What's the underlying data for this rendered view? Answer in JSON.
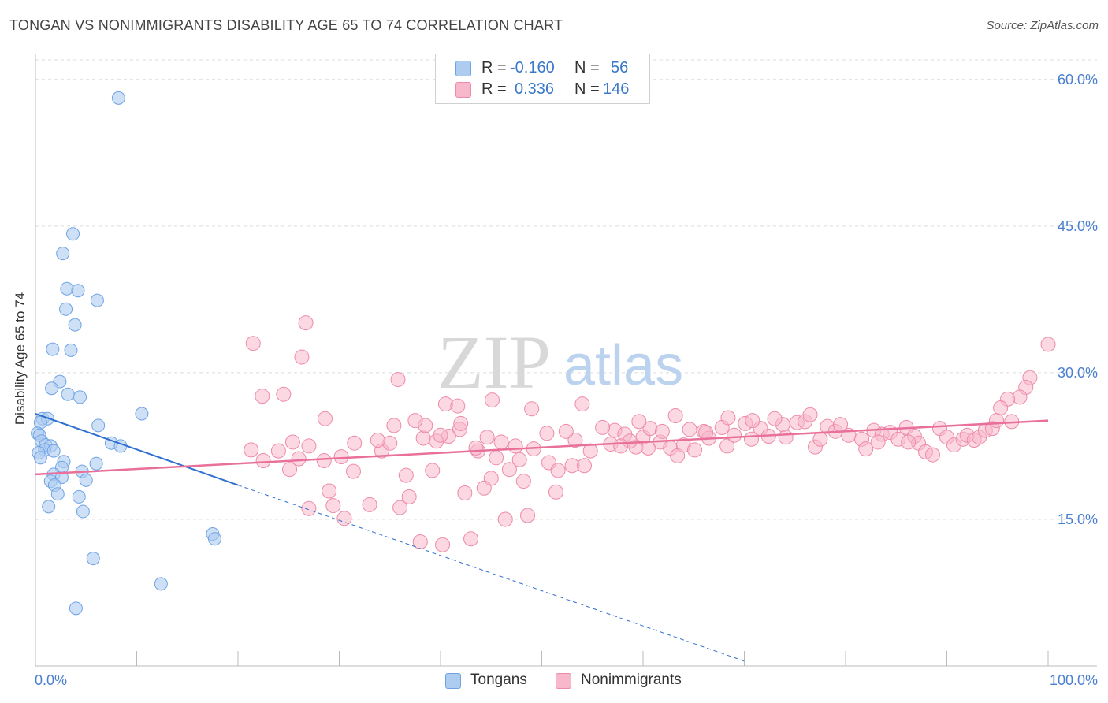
{
  "title": "TONGAN VS NONIMMIGRANTS DISABILITY AGE 65 TO 74 CORRELATION CHART",
  "source": "Source: ZipAtlas.com",
  "watermark": {
    "zip": "ZIP",
    "atlas": "atlas"
  },
  "legend_stats": [
    {
      "r_label": "R =",
      "r_value": "-0.160",
      "n_label": "N =",
      "n_value": "56",
      "color": "#aecbf0"
    },
    {
      "r_label": "R =",
      "r_value": "0.336",
      "n_label": "N =",
      "n_value": "146",
      "color": "#f7b8cb"
    }
  ],
  "legend_series": [
    {
      "name": "Tongans",
      "color": "#aecbf0"
    },
    {
      "name": "Nonimmigrants",
      "color": "#f7b8cb"
    }
  ],
  "chart_data": {
    "type": "scatter",
    "title": "TONGAN VS NONIMMIGRANTS DISABILITY AGE 65 TO 74 CORRELATION CHART",
    "xlabel": "",
    "ylabel": "Disability Age 65 to 74",
    "xlim": [
      0,
      100
    ],
    "ylim": [
      0,
      62
    ],
    "x_tick_labels": [
      "0.0%",
      "100.0%"
    ],
    "y_ticks": [
      15,
      30,
      45,
      60
    ],
    "y_tick_labels": [
      "15.0%",
      "30.0%",
      "45.0%",
      "60.0%"
    ],
    "grid": true,
    "legend_placement": "bottom",
    "colors": {
      "tongans": "#6fa3e6",
      "tongans_fill": "#aecbf0",
      "tongans_line": "#2f6fd0",
      "nonimmigrants": "#ee8aa8",
      "nonimmigrants_fill": "#f7b8cb",
      "nonimmigrants_line": "#e8709a"
    },
    "series": [
      {
        "name": "Tongans",
        "trend": {
          "x0": 0,
          "y0": 25.8,
          "x1": 20,
          "y1": 18.5,
          "dashed_to_x": 70,
          "dashed_to_y": 0.5
        },
        "points": [
          [
            8.2,
            58.1
          ],
          [
            3.7,
            44.2
          ],
          [
            2.7,
            42.2
          ],
          [
            3.1,
            38.6
          ],
          [
            4.2,
            38.4
          ],
          [
            6.1,
            37.4
          ],
          [
            3.0,
            36.5
          ],
          [
            3.9,
            34.9
          ],
          [
            1.7,
            32.4
          ],
          [
            3.5,
            32.3
          ],
          [
            2.4,
            29.1
          ],
          [
            1.6,
            28.4
          ],
          [
            3.2,
            27.8
          ],
          [
            4.4,
            27.5
          ],
          [
            10.5,
            25.8
          ],
          [
            0.7,
            25.3
          ],
          [
            1.2,
            25.3
          ],
          [
            0.5,
            24.9
          ],
          [
            6.2,
            24.6
          ],
          [
            0.2,
            23.8
          ],
          [
            0.4,
            23.6
          ],
          [
            0.6,
            23.0
          ],
          [
            1.0,
            22.6
          ],
          [
            7.5,
            22.8
          ],
          [
            8.4,
            22.5
          ],
          [
            1.5,
            22.5
          ],
          [
            0.9,
            22.1
          ],
          [
            0.3,
            21.8
          ],
          [
            1.8,
            22.0
          ],
          [
            0.5,
            21.3
          ],
          [
            2.8,
            20.9
          ],
          [
            6.0,
            20.7
          ],
          [
            2.6,
            20.3
          ],
          [
            4.6,
            19.9
          ],
          [
            1.8,
            19.6
          ],
          [
            2.6,
            19.3
          ],
          [
            5.0,
            19.0
          ],
          [
            1.5,
            18.9
          ],
          [
            1.9,
            18.5
          ],
          [
            2.2,
            17.6
          ],
          [
            4.3,
            17.3
          ],
          [
            1.3,
            16.3
          ],
          [
            4.7,
            15.8
          ],
          [
            17.5,
            13.5
          ],
          [
            17.7,
            13.0
          ],
          [
            5.7,
            11.0
          ],
          [
            12.4,
            8.4
          ],
          [
            4.0,
            5.9
          ]
        ]
      },
      {
        "name": "Nonimmigrants",
        "trend": {
          "x0": 0,
          "y0": 19.6,
          "x1": 100,
          "y1": 25.1
        },
        "points": [
          [
            26.7,
            35.1
          ],
          [
            21.5,
            33.0
          ],
          [
            26.3,
            31.6
          ],
          [
            35.8,
            29.3
          ],
          [
            24.5,
            27.8
          ],
          [
            22.4,
            27.6
          ],
          [
            45.1,
            27.2
          ],
          [
            40.5,
            26.8
          ],
          [
            41.7,
            26.6
          ],
          [
            49.0,
            26.3
          ],
          [
            54.0,
            26.8
          ],
          [
            100.0,
            32.9
          ],
          [
            98.2,
            29.5
          ],
          [
            97.8,
            28.5
          ],
          [
            97.2,
            27.5
          ],
          [
            96.0,
            27.3
          ],
          [
            95.3,
            26.4
          ],
          [
            28.6,
            25.3
          ],
          [
            35.4,
            24.6
          ],
          [
            41.9,
            24.2
          ],
          [
            40.8,
            23.5
          ],
          [
            38.3,
            23.3
          ],
          [
            39.6,
            23.0
          ],
          [
            25.4,
            22.9
          ],
          [
            34.2,
            22.0
          ],
          [
            43.7,
            22.0
          ],
          [
            47.8,
            21.1
          ],
          [
            45.5,
            21.3
          ],
          [
            46.8,
            20.1
          ],
          [
            50.7,
            20.8
          ],
          [
            51.6,
            20.0
          ],
          [
            53.0,
            20.5
          ],
          [
            25.1,
            20.1
          ],
          [
            31.4,
            19.9
          ],
          [
            36.6,
            19.5
          ],
          [
            39.2,
            20.0
          ],
          [
            45.0,
            19.2
          ],
          [
            48.2,
            18.9
          ],
          [
            44.3,
            18.2
          ],
          [
            42.4,
            17.7
          ],
          [
            29.0,
            17.9
          ],
          [
            33.0,
            16.5
          ],
          [
            36.9,
            17.3
          ],
          [
            27.0,
            16.1
          ],
          [
            29.4,
            16.4
          ],
          [
            36.0,
            16.2
          ],
          [
            30.5,
            15.1
          ],
          [
            46.4,
            15.0
          ],
          [
            48.6,
            15.4
          ],
          [
            38.0,
            12.7
          ],
          [
            40.2,
            12.4
          ],
          [
            43.0,
            13.0
          ],
          [
            51.4,
            17.8
          ],
          [
            54.2,
            20.5
          ],
          [
            56.8,
            22.7
          ],
          [
            57.2,
            24.1
          ],
          [
            58.2,
            23.7
          ],
          [
            59.3,
            22.4
          ],
          [
            60.0,
            23.4
          ],
          [
            60.7,
            24.3
          ],
          [
            61.7,
            22.9
          ],
          [
            62.7,
            22.3
          ],
          [
            63.4,
            21.5
          ],
          [
            64.0,
            22.6
          ],
          [
            65.1,
            22.1
          ],
          [
            66.0,
            24.0
          ],
          [
            66.5,
            23.3
          ],
          [
            67.8,
            24.4
          ],
          [
            68.3,
            22.5
          ],
          [
            69.0,
            23.6
          ],
          [
            70.1,
            24.8
          ],
          [
            70.7,
            23.2
          ],
          [
            71.6,
            24.3
          ],
          [
            72.4,
            23.5
          ],
          [
            73.8,
            24.7
          ],
          [
            74.1,
            23.4
          ],
          [
            75.2,
            24.9
          ],
          [
            76.0,
            25.0
          ],
          [
            77.0,
            22.4
          ],
          [
            77.5,
            23.2
          ],
          [
            78.2,
            24.5
          ],
          [
            79.0,
            24.0
          ],
          [
            79.5,
            24.7
          ],
          [
            80.3,
            23.6
          ],
          [
            81.6,
            23.2
          ],
          [
            82.0,
            22.2
          ],
          [
            82.8,
            24.1
          ],
          [
            83.6,
            23.7
          ],
          [
            84.4,
            23.9
          ],
          [
            85.2,
            23.2
          ],
          [
            86.0,
            24.4
          ],
          [
            86.8,
            23.5
          ],
          [
            87.2,
            22.8
          ],
          [
            87.9,
            21.9
          ],
          [
            88.6,
            21.6
          ],
          [
            89.3,
            24.3
          ],
          [
            90.0,
            23.4
          ],
          [
            90.7,
            22.6
          ],
          [
            91.6,
            23.2
          ],
          [
            92.0,
            23.6
          ],
          [
            92.7,
            23.1
          ],
          [
            93.2,
            23.4
          ],
          [
            93.8,
            24.1
          ],
          [
            94.5,
            24.3
          ],
          [
            94.9,
            25.1
          ],
          [
            96.4,
            25.0
          ],
          [
            76.5,
            25.7
          ],
          [
            73.0,
            25.3
          ],
          [
            70.8,
            25.1
          ],
          [
            68.4,
            25.4
          ],
          [
            66.2,
            23.9
          ],
          [
            64.6,
            24.2
          ],
          [
            63.2,
            25.6
          ],
          [
            61.9,
            24.0
          ],
          [
            60.5,
            22.3
          ],
          [
            59.6,
            25.0
          ],
          [
            58.7,
            23.0
          ],
          [
            57.8,
            22.5
          ],
          [
            56.0,
            24.4
          ],
          [
            54.8,
            22.0
          ],
          [
            53.3,
            23.1
          ],
          [
            52.4,
            24.0
          ],
          [
            50.5,
            23.8
          ],
          [
            49.2,
            22.2
          ],
          [
            47.4,
            22.5
          ],
          [
            46.0,
            22.9
          ],
          [
            44.6,
            23.4
          ],
          [
            43.5,
            22.3
          ],
          [
            42.0,
            24.8
          ],
          [
            40.0,
            23.6
          ],
          [
            38.5,
            24.6
          ],
          [
            37.5,
            25.1
          ],
          [
            35.0,
            22.8
          ],
          [
            33.8,
            23.1
          ],
          [
            31.5,
            22.8
          ],
          [
            30.2,
            21.4
          ],
          [
            28.5,
            21.0
          ],
          [
            27.0,
            22.5
          ],
          [
            26.0,
            21.2
          ],
          [
            24.0,
            22.0
          ],
          [
            22.5,
            21.0
          ],
          [
            21.3,
            22.1
          ],
          [
            83.2,
            22.9
          ],
          [
            86.2,
            22.9
          ]
        ]
      }
    ]
  }
}
